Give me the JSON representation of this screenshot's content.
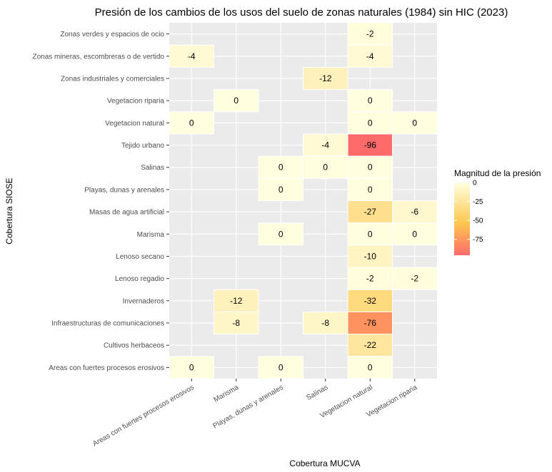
{
  "chart_data": {
    "type": "heatmap",
    "title": "Presión de los cambios de los usos del suelo de zonas naturales (1984) sin HIC (2023)",
    "xlabel": "Cobertura MUCVA",
    "ylabel": "Cobertura SIOSE",
    "x_categories": [
      "Areas con fuertes procesos erosivos",
      "Marisma",
      "Playas, dunas y arenales",
      "Salinas",
      "Vegetacion natural",
      "Vegetacion riparia"
    ],
    "y_categories": [
      "Zonas verdes y espacios de ocio",
      "Zonas mineras, escombreras o de vertido",
      "Zonas industriales y comerciales",
      "Vegetacion riparia",
      "Vegetacion natural",
      "Tejido urbano",
      "Salinas",
      "Playas, dunas y arenales",
      "Masas de agua artificial",
      "Marisma",
      "Lenoso secano",
      "Lenoso regadio",
      "Invernaderos",
      "Infraestructuras de comunicaciones",
      "Cultivos herbaceos",
      "Areas con fuertes procesos erosivos"
    ],
    "cells": [
      {
        "x": "Vegetacion natural",
        "y": "Zonas verdes y espacios de ocio",
        "value": -2
      },
      {
        "x": "Areas con fuertes procesos erosivos",
        "y": "Zonas mineras, escombreras o de vertido",
        "value": -4
      },
      {
        "x": "Vegetacion natural",
        "y": "Zonas mineras, escombreras o de vertido",
        "value": -4
      },
      {
        "x": "Salinas",
        "y": "Zonas industriales y comerciales",
        "value": -12
      },
      {
        "x": "Marisma",
        "y": "Vegetacion riparia",
        "value": 0
      },
      {
        "x": "Vegetacion natural",
        "y": "Vegetacion riparia",
        "value": 0
      },
      {
        "x": "Areas con fuertes procesos erosivos",
        "y": "Vegetacion natural",
        "value": 0
      },
      {
        "x": "Vegetacion natural",
        "y": "Vegetacion natural",
        "value": 0
      },
      {
        "x": "Vegetacion riparia",
        "y": "Vegetacion natural",
        "value": 0
      },
      {
        "x": "Salinas",
        "y": "Tejido urbano",
        "value": -4
      },
      {
        "x": "Vegetacion natural",
        "y": "Tejido urbano",
        "value": -96
      },
      {
        "x": "Playas, dunas y arenales",
        "y": "Salinas",
        "value": 0
      },
      {
        "x": "Salinas",
        "y": "Salinas",
        "value": 0
      },
      {
        "x": "Vegetacion natural",
        "y": "Salinas",
        "value": 0
      },
      {
        "x": "Playas, dunas y arenales",
        "y": "Playas, dunas y arenales",
        "value": 0
      },
      {
        "x": "Vegetacion natural",
        "y": "Playas, dunas y arenales",
        "value": 0
      },
      {
        "x": "Vegetacion natural",
        "y": "Masas de agua artificial",
        "value": -27
      },
      {
        "x": "Vegetacion riparia",
        "y": "Masas de agua artificial",
        "value": -6
      },
      {
        "x": "Playas, dunas y arenales",
        "y": "Marisma",
        "value": 0
      },
      {
        "x": "Vegetacion natural",
        "y": "Marisma",
        "value": 0
      },
      {
        "x": "Vegetacion riparia",
        "y": "Marisma",
        "value": 0
      },
      {
        "x": "Vegetacion natural",
        "y": "Lenoso secano",
        "value": -10
      },
      {
        "x": "Vegetacion natural",
        "y": "Lenoso regadio",
        "value": -2
      },
      {
        "x": "Vegetacion riparia",
        "y": "Lenoso regadio",
        "value": -2
      },
      {
        "x": "Marisma",
        "y": "Invernaderos",
        "value": -12
      },
      {
        "x": "Vegetacion natural",
        "y": "Invernaderos",
        "value": -32
      },
      {
        "x": "Marisma",
        "y": "Infraestructuras de comunicaciones",
        "value": -8
      },
      {
        "x": "Salinas",
        "y": "Infraestructuras de comunicaciones",
        "value": -8
      },
      {
        "x": "Vegetacion natural",
        "y": "Infraestructuras de comunicaciones",
        "value": -76
      },
      {
        "x": "Vegetacion natural",
        "y": "Cultivos herbaceos",
        "value": -22
      },
      {
        "x": "Areas con fuertes procesos erosivos",
        "y": "Areas con fuertes procesos erosivos",
        "value": 0
      },
      {
        "x": "Playas, dunas y arenales",
        "y": "Areas con fuertes procesos erosivos",
        "value": 0
      },
      {
        "x": "Vegetacion natural",
        "y": "Areas con fuertes procesos erosivos",
        "value": 0
      }
    ],
    "legend": {
      "title": "Magnitud de la presión",
      "ticks": [
        0,
        -25,
        -50,
        -75
      ],
      "range": [
        -96,
        0
      ],
      "colors": [
        "#ffffe0",
        "#ffc84f",
        "#ff6b6b"
      ],
      "placement": "right"
    },
    "grid": true,
    "panel_background": "#ebebeb"
  }
}
